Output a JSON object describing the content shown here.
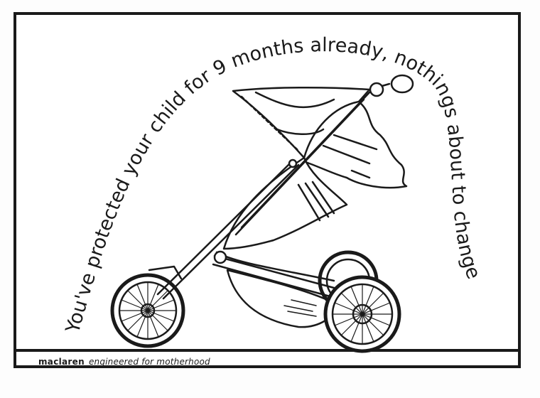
{
  "ad": {
    "headline": "You've protected your child for 9 months already, nothings about to change",
    "brand": "maclaren",
    "tagline": "engineered for motherhood"
  },
  "colors": {
    "ink": "#1a1a1a",
    "paper": "#ffffff"
  },
  "illustration": "stroller-icon"
}
